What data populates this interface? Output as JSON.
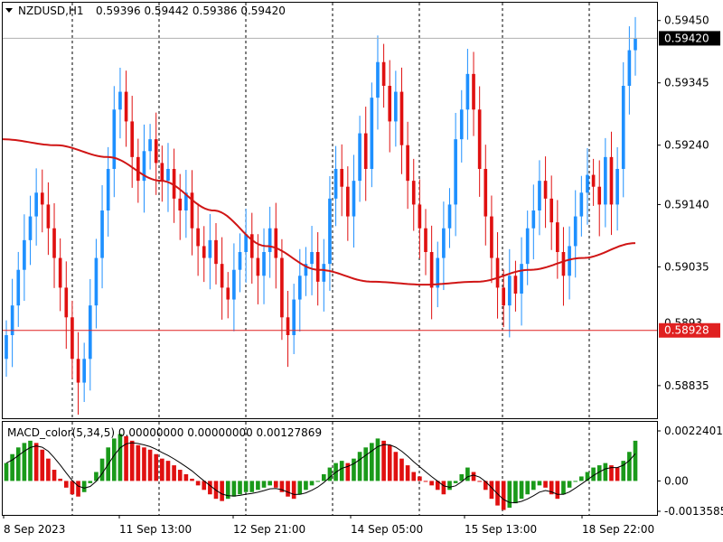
{
  "header": {
    "symbol_timeframe": "NZDUSD,H1",
    "ohlc": "0.59396 0.59442 0.59386 0.59420"
  },
  "indicator": {
    "label": "MACD_color(5,34,5) 0.00000000 0.00000000 0.00127869",
    "ticks": [
      "0.0022401",
      "0.00",
      "-0.0013585"
    ]
  },
  "colors": {
    "bull": "#1e90ff",
    "bear": "#e01010",
    "ma": "#d01515",
    "hline": "#e02020",
    "grid": "#000000",
    "macd_pos": "#1a9a1a",
    "macd_neg": "#e01010"
  },
  "chart_data": [
    {
      "type": "candlestick",
      "title": "NZDUSD,H1",
      "y_ticks": [
        "0.59450",
        "0.59345",
        "0.59240",
        "0.59140",
        "0.59035",
        "0.58835"
      ],
      "y_tick_values": [
        0.5945,
        0.59345,
        0.5924,
        0.5914,
        0.59035,
        0.58835
      ],
      "ylim": [
        0.5878,
        0.5948
      ],
      "x_ticks": [
        "8 Sep 2023",
        "11 Sep 13:00",
        "12 Sep 21:00",
        "14 Sep 05:00",
        "15 Sep 13:00",
        "18 Sep 22:00"
      ],
      "current_price": {
        "label": "0.59420",
        "value": 0.5942
      },
      "horizontal_line": {
        "label": "0.58928",
        "value": 0.58928
      },
      "partial_tick_label": "0.5893",
      "moving_average_anchors": [
        0.5925,
        0.5924,
        0.5922,
        0.5918,
        0.5913,
        0.5907,
        0.5903,
        0.5901,
        0.59005,
        0.5901,
        0.5903,
        0.5905,
        0.59075
      ],
      "closes": [
        0.5892,
        0.5897,
        0.5903,
        0.5908,
        0.5912,
        0.5916,
        0.5914,
        0.591,
        0.5905,
        0.59,
        0.5895,
        0.5888,
        0.5884,
        0.5888,
        0.5897,
        0.5905,
        0.5913,
        0.592,
        0.593,
        0.5933,
        0.5928,
        0.5922,
        0.5918,
        0.5923,
        0.5925,
        0.5921,
        0.5918,
        0.592,
        0.5915,
        0.5913,
        0.5916,
        0.591,
        0.5907,
        0.5905,
        0.5908,
        0.5904,
        0.59,
        0.5898,
        0.5903,
        0.5906,
        0.5909,
        0.5905,
        0.5902,
        0.5906,
        0.591,
        0.5905,
        0.5895,
        0.5892,
        0.5898,
        0.5902,
        0.5904,
        0.5906,
        0.5901,
        0.5904,
        0.5915,
        0.592,
        0.5917,
        0.5912,
        0.5918,
        0.5926,
        0.592,
        0.5932,
        0.5938,
        0.5934,
        0.5928,
        0.5933,
        0.5924,
        0.5918,
        0.5914,
        0.591,
        0.5906,
        0.59,
        0.5905,
        0.591,
        0.5914,
        0.5925,
        0.593,
        0.5936,
        0.593,
        0.592,
        0.5912,
        0.5905,
        0.59,
        0.5897,
        0.5902,
        0.5899,
        0.5904,
        0.591,
        0.5913,
        0.5918,
        0.5915,
        0.5911,
        0.5906,
        0.5902,
        0.5907,
        0.5912,
        0.5916,
        0.5919,
        0.5917,
        0.5914,
        0.5922,
        0.5914,
        0.592,
        0.5934,
        0.594,
        0.5942
      ]
    },
    {
      "type": "bar",
      "title": "MACD_color(5,34,5)",
      "ylim": [
        -0.0013585,
        0.0022401
      ],
      "values": [
        0.0008,
        0.0012,
        0.0015,
        0.0017,
        0.0018,
        0.0017,
        0.0014,
        0.001,
        0.0005,
        0.0001,
        -0.0003,
        -0.0006,
        -0.0007,
        -0.0005,
        -0.0001,
        0.0004,
        0.001,
        0.0015,
        0.0019,
        0.0021,
        0.002,
        0.0018,
        0.0016,
        0.0015,
        0.0014,
        0.0012,
        0.001,
        0.0009,
        0.0007,
        0.0005,
        0.0003,
        0.0001,
        -0.0002,
        -0.0004,
        -0.0006,
        -0.0008,
        -0.0009,
        -0.0008,
        -0.0007,
        -0.0006,
        -0.0005,
        -0.0005,
        -0.0004,
        -0.0003,
        -0.0002,
        -0.0003,
        -0.0005,
        -0.0007,
        -0.0008,
        -0.0006,
        -0.0004,
        -0.0002,
        0.0,
        0.0003,
        0.0006,
        0.0008,
        0.0009,
        0.0008,
        0.001,
        0.0013,
        0.0015,
        0.0017,
        0.0019,
        0.0018,
        0.0016,
        0.0013,
        0.001,
        0.0007,
        0.0004,
        0.0002,
        0.0,
        -0.0002,
        -0.0004,
        -0.0006,
        -0.0004,
        -0.0001,
        0.0003,
        0.0006,
        0.0004,
        0.0,
        -0.0004,
        -0.0008,
        -0.0011,
        -0.0013,
        -0.0012,
        -0.001,
        -0.0008,
        -0.0006,
        -0.0004,
        -0.0002,
        -0.0003,
        -0.0006,
        -0.0008,
        -0.0006,
        -0.0003,
        0.0,
        0.0002,
        0.0004,
        0.0006,
        0.0007,
        0.0008,
        0.0007,
        0.0006,
        0.0009,
        0.0013,
        0.0018
      ]
    }
  ]
}
